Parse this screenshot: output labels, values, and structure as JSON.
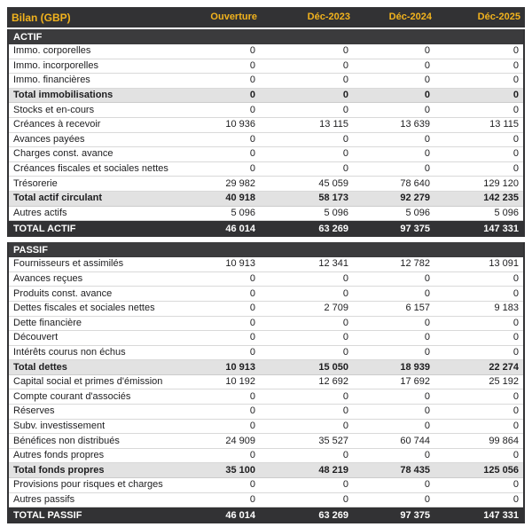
{
  "colors": {
    "header_bg": "#323234",
    "section_header_bg": "#3b3b3d",
    "total_bg": "#323234",
    "accent": "#F2B31D",
    "subtotal_bg": "#E2E2E2",
    "row_border": "#D9D9D9",
    "text": "#1d1d1f",
    "inverse": "#FFFFFF",
    "page": "#FFFFFF"
  },
  "table": {
    "title": "Bilan (GBP)",
    "columns": [
      "Ouverture",
      "Déc-2023",
      "Déc-2024",
      "Déc-2025"
    ],
    "sections": [
      {
        "name": "ACTIF",
        "rows": [
          {
            "label": "Immo. corporelles",
            "style": "normal",
            "values": [
              "0",
              "0",
              "0",
              "0"
            ]
          },
          {
            "label": "Immo. incorporelles",
            "style": "normal",
            "values": [
              "0",
              "0",
              "0",
              "0"
            ]
          },
          {
            "label": "Immo. financières",
            "style": "normal",
            "values": [
              "0",
              "0",
              "0",
              "0"
            ]
          },
          {
            "label": "Total immobilisations",
            "style": "subtotal",
            "values": [
              "0",
              "0",
              "0",
              "0"
            ]
          },
          {
            "label": "Stocks et en-cours",
            "style": "normal",
            "values": [
              "0",
              "0",
              "0",
              "0"
            ]
          },
          {
            "label": "Créances à recevoir",
            "style": "normal",
            "values": [
              "10 936",
              "13 115",
              "13 639",
              "13 115"
            ]
          },
          {
            "label": "Avances payées",
            "style": "normal",
            "values": [
              "0",
              "0",
              "0",
              "0"
            ]
          },
          {
            "label": "Charges const. avance",
            "style": "normal",
            "values": [
              "0",
              "0",
              "0",
              "0"
            ]
          },
          {
            "label": "Créances fiscales et sociales nettes",
            "style": "normal",
            "values": [
              "0",
              "0",
              "0",
              "0"
            ]
          },
          {
            "label": "Trésorerie",
            "style": "normal",
            "values": [
              "29 982",
              "45 059",
              "78 640",
              "129 120"
            ]
          },
          {
            "label": "Total actif circulant",
            "style": "subtotal",
            "values": [
              "40 918",
              "58 173",
              "92 279",
              "142 235"
            ]
          },
          {
            "label": "Autres actifs",
            "style": "normal",
            "values": [
              "5 096",
              "5 096",
              "5 096",
              "5 096"
            ]
          }
        ],
        "total": {
          "label": "TOTAL ACTIF",
          "values": [
            "46 014",
            "63 269",
            "97 375",
            "147 331"
          ]
        }
      },
      {
        "name": "PASSIF",
        "rows": [
          {
            "label": "Fournisseurs et assimilés",
            "style": "normal",
            "values": [
              "10 913",
              "12 341",
              "12 782",
              "13 091"
            ]
          },
          {
            "label": "Avances reçues",
            "style": "normal",
            "values": [
              "0",
              "0",
              "0",
              "0"
            ]
          },
          {
            "label": "Produits const. avance",
            "style": "normal",
            "values": [
              "0",
              "0",
              "0",
              "0"
            ]
          },
          {
            "label": "Dettes fiscales et sociales nettes",
            "style": "normal",
            "values": [
              "0",
              "2 709",
              "6 157",
              "9 183"
            ]
          },
          {
            "label": "Dette financière",
            "style": "normal",
            "values": [
              "0",
              "0",
              "0",
              "0"
            ]
          },
          {
            "label": "Découvert",
            "style": "normal",
            "values": [
              "0",
              "0",
              "0",
              "0"
            ]
          },
          {
            "label": "Intérêts courus non échus",
            "style": "normal",
            "values": [
              "0",
              "0",
              "0",
              "0"
            ]
          },
          {
            "label": "Total dettes",
            "style": "subtotal",
            "values": [
              "10 913",
              "15 050",
              "18 939",
              "22 274"
            ]
          },
          {
            "label": "Capital social et primes d'émission",
            "style": "normal",
            "values": [
              "10 192",
              "12 692",
              "17 692",
              "25 192"
            ]
          },
          {
            "label": "Compte courant d'associés",
            "style": "normal",
            "values": [
              "0",
              "0",
              "0",
              "0"
            ]
          },
          {
            "label": "Réserves",
            "style": "normal",
            "values": [
              "0",
              "0",
              "0",
              "0"
            ]
          },
          {
            "label": "Subv. investissement",
            "style": "normal",
            "values": [
              "0",
              "0",
              "0",
              "0"
            ]
          },
          {
            "label": "Bénéfices non distribués",
            "style": "normal",
            "values": [
              "24 909",
              "35 527",
              "60 744",
              "99 864"
            ]
          },
          {
            "label": "Autres fonds propres",
            "style": "normal",
            "values": [
              "0",
              "0",
              "0",
              "0"
            ]
          },
          {
            "label": "Total fonds propres",
            "style": "subtotal",
            "values": [
              "35 100",
              "48 219",
              "78 435",
              "125 056"
            ]
          },
          {
            "label": "Provisions pour risques et charges",
            "style": "normal",
            "values": [
              "0",
              "0",
              "0",
              "0"
            ]
          },
          {
            "label": "Autres passifs",
            "style": "normal",
            "values": [
              "0",
              "0",
              "0",
              "0"
            ]
          }
        ],
        "total": {
          "label": "TOTAL PASSIF",
          "values": [
            "46 014",
            "63 269",
            "97 375",
            "147 331"
          ]
        }
      }
    ]
  }
}
